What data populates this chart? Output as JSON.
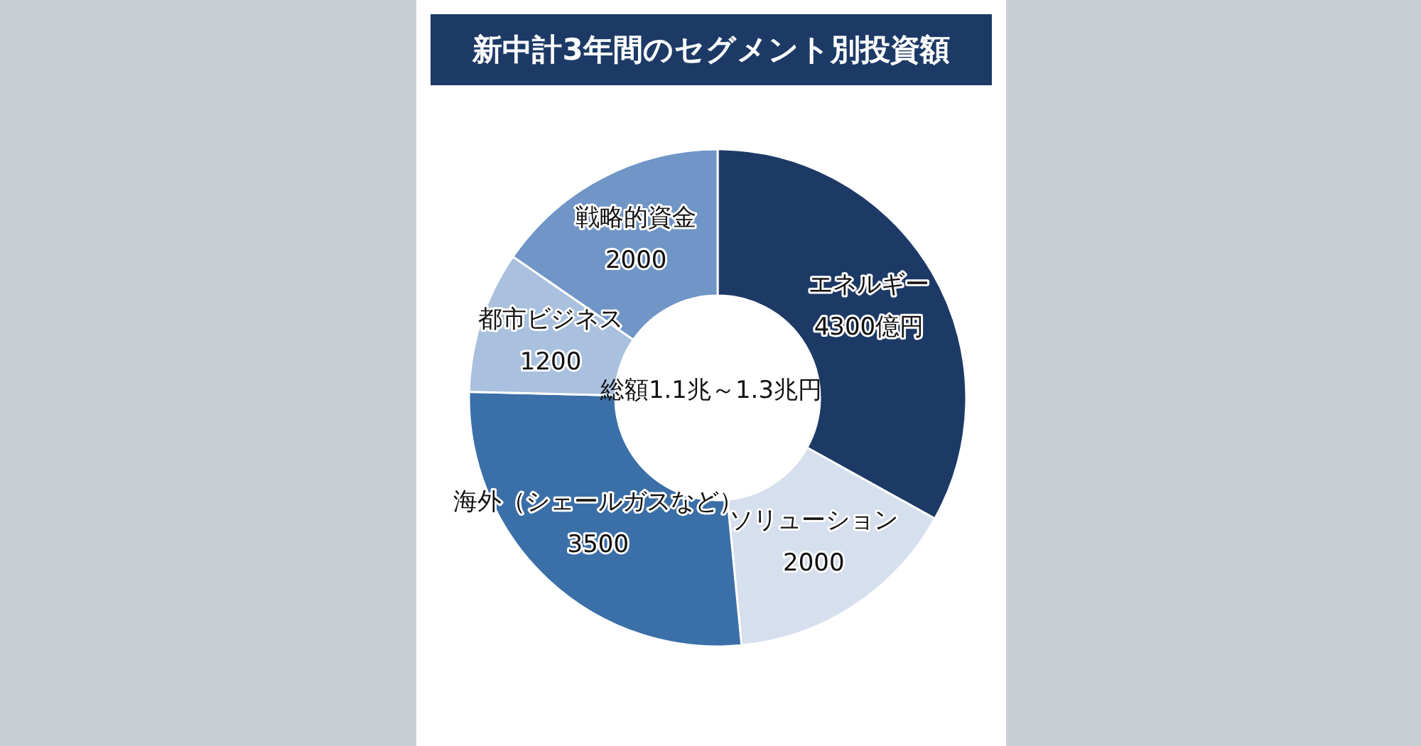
{
  "chart_data": {
    "type": "donut",
    "title": "新中計3年間のセグメント別投資額",
    "categories": [
      "エネルギー",
      "ソリューション",
      "海外（シェールガスなど）",
      "都市ビジネス",
      "戦略的資金"
    ],
    "values": [
      4300,
      2000,
      3500,
      1200,
      2000
    ],
    "value_labels": [
      "4300億円",
      "2000",
      "3500",
      "1200",
      "2000"
    ],
    "colors": [
      "#1d3a66",
      "#d5dfee",
      "#3b6fa8",
      "#a9c0de",
      "#7095c7"
    ],
    "annotations": [
      "総額1.1兆～1.3兆円"
    ]
  }
}
